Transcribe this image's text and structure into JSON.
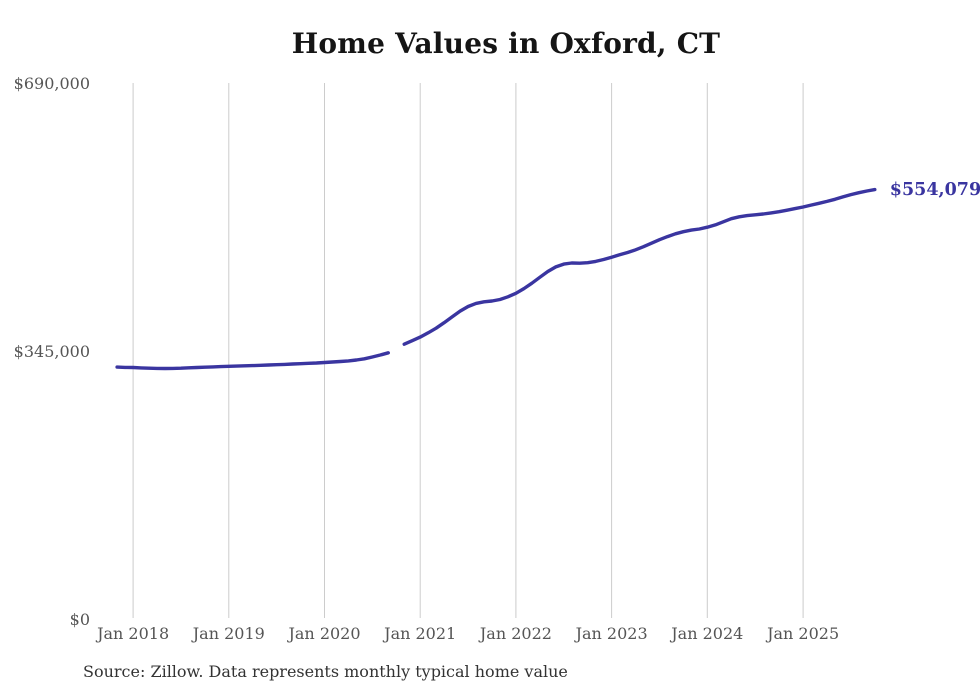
{
  "ui": {
    "title": "Home Values in Oxford, CT",
    "source_note": "Source: Zillow. Data represents monthly typical home value",
    "end_label": "$554,079",
    "colors": {
      "line": "#3a35a0",
      "end_label": "#3a35a0",
      "grid": "#cccccc",
      "tick_text": "#555555",
      "title_text": "#151515",
      "source_text": "#333333",
      "background": "#ffffff"
    }
  },
  "chart_data": {
    "type": "line",
    "title": "Home Values in Oxford, CT",
    "xlabel": "",
    "ylabel": "",
    "ylim": [
      0,
      690000
    ],
    "grid": "vertical-only",
    "legend_position": "none",
    "x_ticks": [
      "Jan 2018",
      "Jan 2019",
      "Jan 2020",
      "Jan 2021",
      "Jan 2022",
      "Jan 2023",
      "Jan 2024",
      "Jan 2025"
    ],
    "y_ticks": [
      {
        "label": "$690,000",
        "value": 690000
      },
      {
        "label": "$345,000",
        "value": 345000
      },
      {
        "label": "$0",
        "value": 0
      }
    ],
    "series": [
      {
        "name": "Typical home value",
        "final_value": 554079,
        "end_label": "$554,079",
        "x": [
          "Nov 2017",
          "Dec 2017",
          "Jan 2018",
          "Feb 2018",
          "Mar 2018",
          "Apr 2018",
          "May 2018",
          "Jun 2018",
          "Jul 2018",
          "Aug 2018",
          "Sep 2018",
          "Oct 2018",
          "Nov 2018",
          "Dec 2018",
          "Jan 2019",
          "Feb 2019",
          "Mar 2019",
          "Apr 2019",
          "May 2019",
          "Jun 2019",
          "Jul 2019",
          "Aug 2019",
          "Sep 2019",
          "Oct 2019",
          "Nov 2019",
          "Dec 2019",
          "Jan 2020",
          "Feb 2020",
          "Mar 2020",
          "Apr 2020",
          "May 2020",
          "Jun 2020",
          "Jul 2020",
          "Aug 2020",
          "Sep 2020",
          "Oct 2020",
          "Nov 2020",
          "Dec 2020",
          "Jan 2021",
          "Feb 2021",
          "Mar 2021",
          "Apr 2021",
          "May 2021",
          "Jun 2021",
          "Jul 2021",
          "Aug 2021",
          "Sep 2021",
          "Oct 2021",
          "Nov 2021",
          "Dec 2021",
          "Jan 2022",
          "Feb 2022",
          "Mar 2022",
          "Apr 2022",
          "May 2022",
          "Jun 2022",
          "Jul 2022",
          "Aug 2022",
          "Sep 2022",
          "Oct 2022",
          "Nov 2022",
          "Dec 2022",
          "Jan 2023",
          "Feb 2023",
          "Mar 2023",
          "Apr 2023",
          "May 2023",
          "Jun 2023",
          "Jul 2023",
          "Aug 2023",
          "Sep 2023",
          "Oct 2023",
          "Nov 2023",
          "Dec 2023",
          "Jan 2024",
          "Feb 2024",
          "Mar 2024",
          "Apr 2024",
          "May 2024",
          "Jun 2024",
          "Jul 2024",
          "Aug 2024",
          "Sep 2024",
          "Oct 2024",
          "Nov 2024",
          "Dec 2024",
          "Jan 2025",
          "Feb 2025",
          "Mar 2025",
          "Apr 2025",
          "May 2025",
          "Jun 2025",
          "Jul 2025",
          "Aug 2025",
          "Sep 2025",
          "Oct 2025"
        ],
        "values": [
          325600,
          325200,
          325000,
          324500,
          324100,
          323900,
          323800,
          323900,
          324200,
          324600,
          325000,
          325400,
          325800,
          326200,
          326600,
          326900,
          327200,
          327500,
          327900,
          328300,
          328700,
          329100,
          329500,
          329900,
          330400,
          330900,
          331500,
          332100,
          332800,
          333600,
          334700,
          336300,
          338500,
          341200,
          344000,
          null,
          355000,
          359500,
          364200,
          369700,
          375700,
          382700,
          390200,
          397600,
          403600,
          407600,
          409600,
          410600,
          412600,
          416100,
          420600,
          426600,
          433600,
          441100,
          448600,
          454600,
          458100,
          459600,
          459300,
          459900,
          461600,
          464100,
          467100,
          470100,
          473100,
          476600,
          480600,
          485100,
          489600,
          493600,
          497100,
          499900,
          501900,
          503400,
          505600,
          508600,
          512600,
          516600,
          519100,
          520600,
          521600,
          522600,
          524100,
          525600,
          527600,
          529600,
          531600,
          534100,
          536400,
          538900,
          541600,
          544600,
          547600,
          550100,
          552300,
          554079
        ]
      }
    ]
  }
}
